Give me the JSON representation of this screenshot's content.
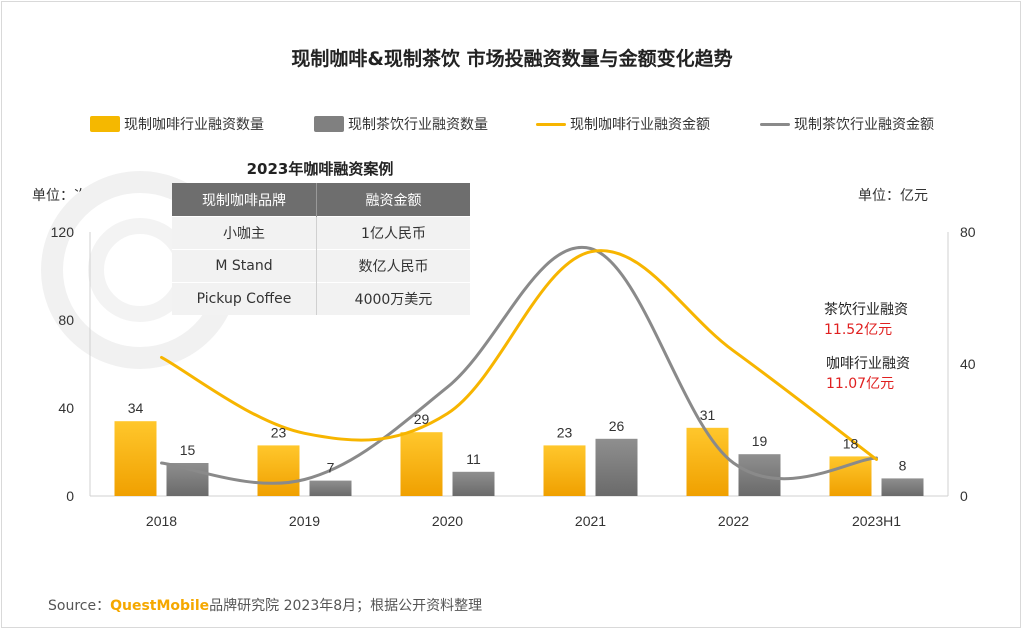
{
  "title": "现制咖啡&现制茶饮 市场投融资数量与金额变化趋势",
  "legend": {
    "coffee_count": "现制咖啡行业融资数量",
    "tea_count": "现制茶饮行业融资数量",
    "coffee_amount": "现制咖啡行业融资金额",
    "tea_amount": "现制茶饮行业融资金额"
  },
  "units": {
    "left": "单位：次",
    "right": "单位：亿元"
  },
  "cases": {
    "title": "2023年咖啡融资案例",
    "headers": [
      "现制咖啡品牌",
      "融资金额"
    ],
    "rows": [
      [
        "小咖主",
        "1亿人民币"
      ],
      [
        "M Stand",
        "数亿人民币"
      ],
      [
        "Pickup Coffee",
        "4000万美元"
      ]
    ]
  },
  "annotations": {
    "tea_label": "茶饮行业融资",
    "tea_value": "11.52亿元",
    "coffee_label": "咖啡行业融资",
    "coffee_value": "11.07亿元"
  },
  "source": {
    "prefix": "Source：",
    "brand": "QuestMobile",
    "rest": "品牌研究院 2023年8月；根据公开资料整理"
  },
  "colors": {
    "coffee": "#f5b800",
    "tea": "#808080",
    "coffee_line": "#f7b500",
    "tea_line": "#8a8a8a",
    "highlight": "#e02020"
  },
  "chart_data": {
    "type": "bar",
    "categories": [
      "2018",
      "2019",
      "2020",
      "2021",
      "2022",
      "2023H1"
    ],
    "series": [
      {
        "name": "现制咖啡行业融资数量",
        "type": "bar",
        "axis": "left",
        "values": [
          34,
          23,
          29,
          23,
          31,
          18
        ]
      },
      {
        "name": "现制茶饮行业融资数量",
        "type": "bar",
        "axis": "left",
        "values": [
          15,
          7,
          11,
          26,
          19,
          8
        ]
      },
      {
        "name": "现制咖啡行业融资金额",
        "type": "line",
        "axis": "right",
        "values": [
          42,
          19,
          25,
          74,
          44,
          11.07
        ]
      },
      {
        "name": "现制茶饮行业融资金额",
        "type": "line",
        "axis": "right",
        "values": [
          10,
          5,
          33,
          75,
          10,
          11.52
        ]
      }
    ],
    "y_left": {
      "ticks": [
        "120",
        "80",
        "40",
        "0"
      ],
      "range": [
        0,
        120
      ]
    },
    "y_right": {
      "ticks": [
        "80",
        "40",
        "0"
      ],
      "range": [
        0,
        80
      ]
    },
    "legend_position": "top"
  }
}
